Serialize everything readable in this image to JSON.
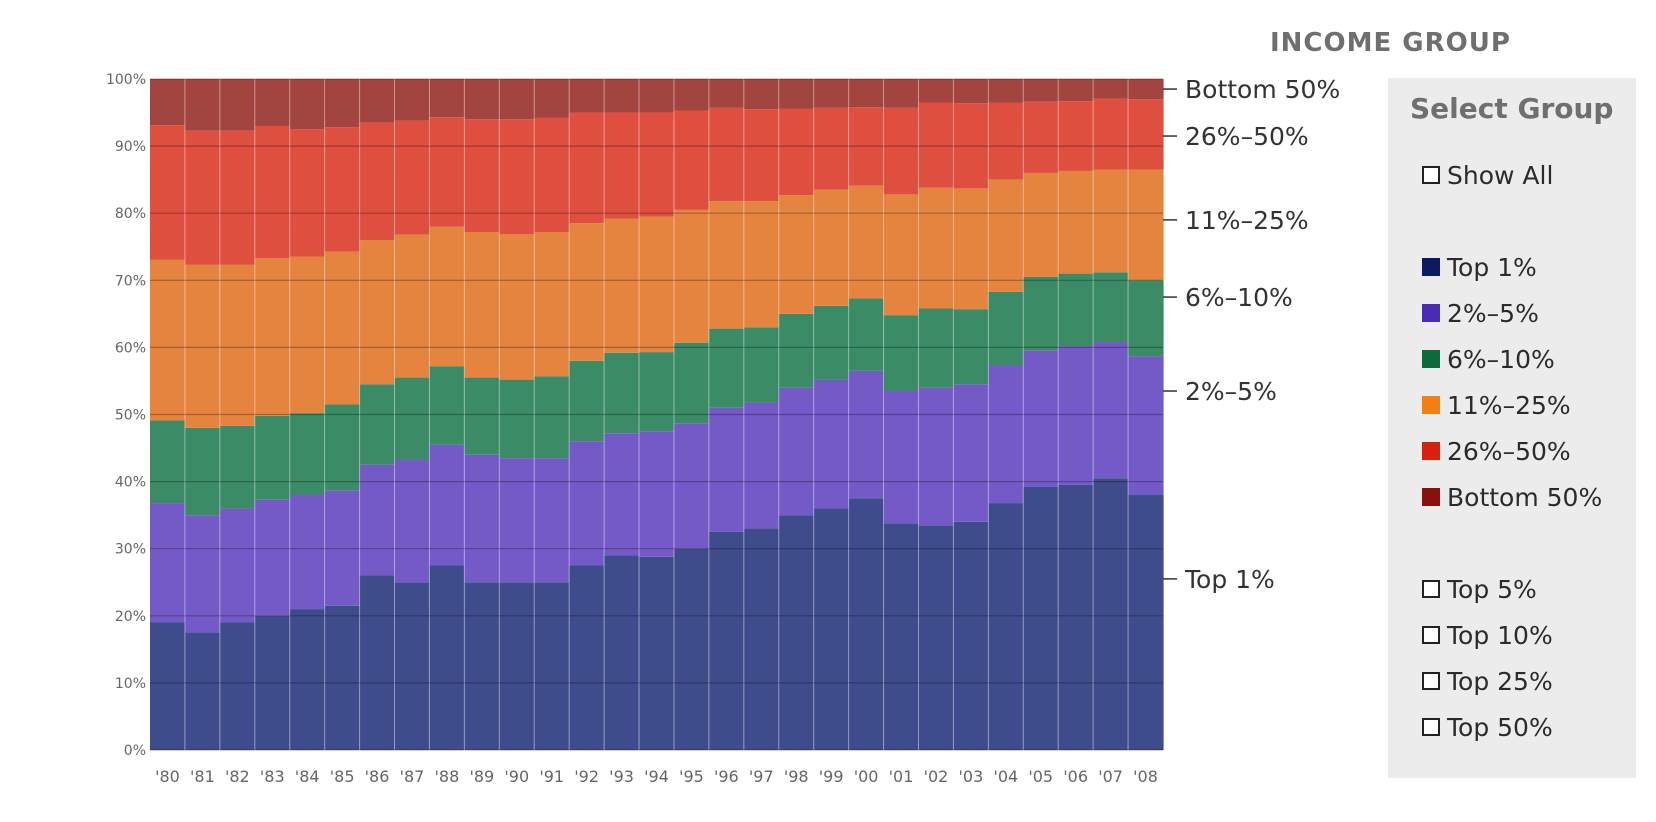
{
  "title": "INCOME GROUP",
  "panel": {
    "title": "Select Group",
    "show_all": {
      "label": "Show All",
      "checked": false
    },
    "groups": [
      {
        "label": "Top 1%",
        "color": "#0b1c5e"
      },
      {
        "label": "2%–5%",
        "color": "#4a2bb3"
      },
      {
        "label": "6%–10%",
        "color": "#0c6a3b"
      },
      {
        "label": "11%–25%",
        "color": "#f27f12"
      },
      {
        "label": "26%–50%",
        "color": "#d6220f"
      },
      {
        "label": "Bottom 50%",
        "color": "#8a120e"
      }
    ],
    "cumulative": [
      {
        "label": "Top 5%",
        "checked": false
      },
      {
        "label": "Top 10%",
        "checked": false
      },
      {
        "label": "Top 25%",
        "checked": false
      },
      {
        "label": "Top 50%",
        "checked": false
      }
    ]
  },
  "chart_data": {
    "type": "area",
    "stacked": true,
    "title": "",
    "xlabel": "",
    "ylabel": "",
    "ylim": [
      0,
      100
    ],
    "grid": true,
    "categories": [
      "'80",
      "'81",
      "'82",
      "'83",
      "'84",
      "'85",
      "'86",
      "'87",
      "'88",
      "'89",
      "'90",
      "'91",
      "'92",
      "'93",
      "'94",
      "'95",
      "'96",
      "'97",
      "'98",
      "'99",
      "'00",
      "'01",
      "'02",
      "'03",
      "'04",
      "'05",
      "'06",
      "'07",
      "'08"
    ],
    "y_tick_labels": [
      "0%",
      "10%",
      "20%",
      "30%",
      "40%",
      "50%",
      "60%",
      "70%",
      "80%",
      "90%",
      "100%"
    ],
    "series": [
      {
        "name": "Top 1%",
        "color": "#3f4c8c",
        "values": [
          19.0,
          17.5,
          19.0,
          20.0,
          21.0,
          21.5,
          26.0,
          25.0,
          27.5,
          25.0,
          25.0,
          25.0,
          27.5,
          29.0,
          28.8,
          30.0,
          32.5,
          33.0,
          35.0,
          36.0,
          37.5,
          33.8,
          33.5,
          34.0,
          36.8,
          39.2,
          39.5,
          40.5,
          38.0
        ]
      },
      {
        "name": "2%–5%",
        "color": "#745ac6",
        "values": [
          17.8,
          17.5,
          17.0,
          17.3,
          17.0,
          17.2,
          16.5,
          18.3,
          18.0,
          19.0,
          18.5,
          18.5,
          18.5,
          18.2,
          18.7,
          18.7,
          18.5,
          18.8,
          19.0,
          19.2,
          19.0,
          19.7,
          20.5,
          20.5,
          20.5,
          20.3,
          20.7,
          20.3,
          20.7
        ]
      },
      {
        "name": "6%–10%",
        "color": "#3b8b66",
        "values": [
          12.3,
          13.0,
          12.3,
          12.5,
          12.2,
          12.8,
          12.0,
          12.2,
          11.7,
          11.5,
          11.7,
          12.2,
          12.0,
          12.0,
          11.8,
          12.0,
          11.8,
          11.2,
          11.0,
          11.0,
          10.8,
          11.3,
          11.8,
          11.2,
          11.0,
          11.0,
          10.8,
          10.4,
          11.3
        ]
      },
      {
        "name": "11%–25%",
        "color": "#e4843f",
        "values": [
          24.0,
          24.3,
          24.0,
          23.5,
          23.3,
          22.8,
          21.5,
          21.3,
          20.8,
          21.7,
          21.7,
          21.5,
          20.5,
          20.0,
          20.2,
          19.8,
          19.0,
          18.8,
          17.7,
          17.3,
          16.8,
          18.0,
          18.0,
          18.0,
          16.7,
          15.5,
          15.3,
          15.3,
          16.5
        ]
      },
      {
        "name": "26%–50%",
        "color": "#de4f3f",
        "values": [
          20.0,
          20.0,
          20.0,
          19.7,
          19.0,
          18.5,
          17.5,
          17.0,
          16.3,
          16.8,
          17.1,
          17.0,
          16.5,
          15.8,
          15.5,
          14.8,
          13.9,
          13.7,
          12.9,
          12.2,
          11.7,
          12.9,
          12.7,
          12.7,
          11.5,
          10.6,
          10.4,
          10.6,
          10.5
        ]
      },
      {
        "name": "Bottom 50%",
        "color": "#a24440",
        "values": [
          6.9,
          7.7,
          7.7,
          7.0,
          7.5,
          7.2,
          6.5,
          6.2,
          5.7,
          6.0,
          6.0,
          5.8,
          5.0,
          5.0,
          5.0,
          4.7,
          4.3,
          4.5,
          4.4,
          4.3,
          4.2,
          4.3,
          3.5,
          3.6,
          3.5,
          3.4,
          3.3,
          2.9,
          3.0
        ]
      }
    ],
    "band_labels": [
      {
        "label": "Bottom 50%",
        "y": 98.5
      },
      {
        "label": "26%–50%",
        "y": 91.5
      },
      {
        "label": "11%–25%",
        "y": 79.0
      },
      {
        "label": "6%–10%",
        "y": 67.5
      },
      {
        "label": "2%–5%",
        "y": 53.5
      },
      {
        "label": "Top 1%",
        "y": 25.5
      }
    ]
  }
}
